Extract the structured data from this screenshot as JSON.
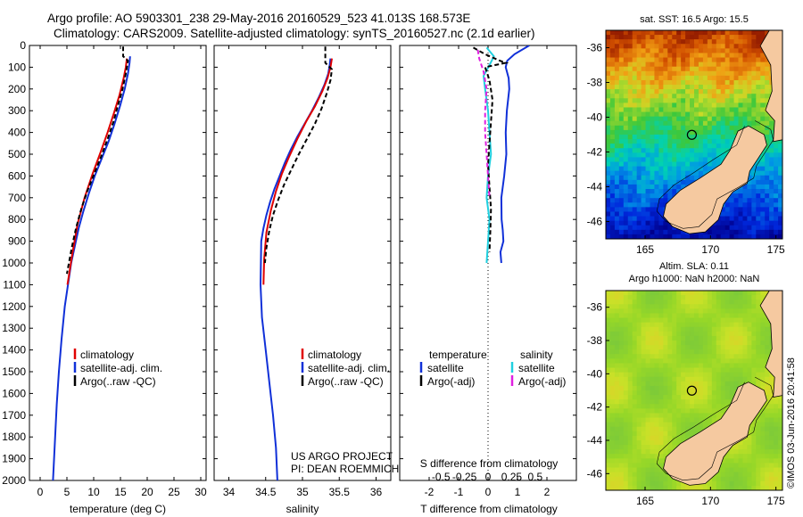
{
  "header": {
    "title_line1": "Argo profile: AO 5903301_238 29-May-2016 20160529_523 41.013S 168.573E",
    "title_line2": "Climatology: CARS2009. Satellite-adjusted climatology: synTS_20160527.nc (2.1d earlier)"
  },
  "colors": {
    "climatology": "#e00000",
    "satellite": "#1030d8",
    "argo": "#000000",
    "salinity_sat": "#20d0e0",
    "salinity_argo": "#e020e0",
    "land": "#f5c9a0"
  },
  "chart_data": [
    {
      "id": "temperature",
      "type": "line",
      "xlabel": "temperature (deg C)",
      "xlim": [
        -2,
        31
      ],
      "ylim": [
        2000,
        0
      ],
      "xticks": [
        "0",
        "5",
        "10",
        "15",
        "20",
        "25",
        "30"
      ],
      "xtick_values": [
        0,
        5,
        10,
        15,
        20,
        25,
        30
      ],
      "yticks": [
        "0",
        "100",
        "200",
        "300",
        "400",
        "500",
        "600",
        "700",
        "800",
        "900",
        "1000",
        "1100",
        "1200",
        "1300",
        "1400",
        "1500",
        "1600",
        "1700",
        "1800",
        "1900",
        "2000"
      ],
      "ytick_values": [
        0,
        100,
        200,
        300,
        400,
        500,
        600,
        700,
        800,
        900,
        1000,
        1100,
        1200,
        1300,
        1400,
        1500,
        1600,
        1700,
        1800,
        1900,
        2000
      ],
      "legend": [
        "climatology",
        "satellite-adj. clim.",
        "Argo(..raw -QC)"
      ],
      "series": [
        {
          "name": "satellite-adj. clim.",
          "color_key": "satellite",
          "x": [
            16.8,
            16.7,
            16.4,
            15.8,
            14.9,
            13.9,
            12.8,
            11.5,
            10.2,
            9.1,
            8.1,
            7.2,
            6.5,
            5.8,
            5.2,
            4.6,
            4.0,
            3.5,
            3.1,
            2.8,
            2.6,
            2.4
          ],
          "y": [
            50,
            80,
            130,
            200,
            280,
            360,
            440,
            520,
            600,
            680,
            760,
            840,
            920,
            1000,
            1100,
            1200,
            1350,
            1500,
            1650,
            1800,
            1900,
            2000
          ]
        },
        {
          "name": "climatology",
          "color_key": "climatology",
          "x": [
            16.2,
            16.0,
            15.6,
            14.8,
            13.8,
            12.6,
            11.3,
            9.8,
            8.3,
            7.0,
            6.0,
            5.1
          ],
          "y": [
            60,
            100,
            150,
            230,
            310,
            400,
            490,
            590,
            700,
            820,
            960,
            1100
          ]
        },
        {
          "name": "Argo(..raw -QC)",
          "color_key": "argo",
          "x": [
            15.5,
            15.5,
            16.4,
            16.0,
            15.4,
            14.6,
            13.7,
            12.6,
            11.4,
            10.1,
            8.8,
            7.7,
            6.7,
            5.9,
            5.3,
            5.0
          ],
          "y": [
            5,
            50,
            70,
            130,
            200,
            270,
            350,
            430,
            510,
            590,
            670,
            750,
            840,
            930,
            1010,
            1050
          ]
        }
      ]
    },
    {
      "id": "salinity",
      "type": "line",
      "xlabel": "salinity",
      "xlim": [
        33.8,
        36.2
      ],
      "ylim": [
        2000,
        0
      ],
      "xticks": [
        "34",
        "34.5",
        "35",
        "35.5",
        "36"
      ],
      "xtick_values": [
        34,
        34.5,
        35,
        35.5,
        36
      ],
      "legend": [
        "climatology",
        "satellite-adj. clim.",
        "Argo(..raw -QC)"
      ],
      "series": [
        {
          "name": "satellite-adj. clim.",
          "color_key": "satellite",
          "x": [
            35.38,
            35.37,
            35.35,
            35.3,
            35.22,
            35.13,
            35.03,
            34.93,
            34.84,
            34.76,
            34.69,
            34.62,
            34.56,
            34.51,
            34.47,
            34.44,
            34.43,
            34.45,
            34.5,
            34.55,
            34.6,
            34.64,
            34.66
          ],
          "y": [
            60,
            90,
            130,
            180,
            240,
            300,
            360,
            420,
            480,
            540,
            600,
            660,
            720,
            780,
            840,
            900,
            1100,
            1250,
            1400,
            1550,
            1700,
            1850,
            2000
          ]
        },
        {
          "name": "climatology",
          "color_key": "climatology",
          "x": [
            35.4,
            35.38,
            35.34,
            35.27,
            35.17,
            35.05,
            34.93,
            34.82,
            34.72,
            34.64,
            34.57,
            34.51,
            34.48,
            34.47
          ],
          "y": [
            60,
            100,
            150,
            210,
            280,
            350,
            430,
            510,
            590,
            670,
            760,
            860,
            980,
            1100
          ]
        },
        {
          "name": "Argo(..raw -QC)",
          "color_key": "argo",
          "x": [
            35.31,
            35.31,
            35.4,
            35.38,
            35.33,
            35.26,
            35.17,
            35.06,
            34.95,
            34.85,
            34.75,
            34.67,
            34.6,
            34.55,
            34.51,
            34.49
          ],
          "y": [
            5,
            80,
            110,
            160,
            220,
            290,
            360,
            430,
            500,
            570,
            640,
            710,
            780,
            850,
            930,
            1000
          ]
        }
      ]
    },
    {
      "id": "difference",
      "type": "line",
      "xlabel": "T difference from climatology",
      "xlabel2": "S difference from climatology",
      "xlim": [
        -3,
        3
      ],
      "ylim": [
        2000,
        0
      ],
      "xticks": [
        "-2",
        "-1",
        "0",
        "1",
        "2"
      ],
      "xtick_values": [
        -2,
        -1,
        0,
        1,
        2
      ],
      "sticks": [
        "-0.5",
        "-0.25",
        "0",
        "0.25",
        "0.5"
      ],
      "stick_values": [
        -1.6,
        -0.8,
        0,
        0.8,
        1.6
      ],
      "legend_temperature_title": "temperature",
      "legend_salinity_title": "salinity",
      "legend_temperature": [
        "satellite",
        "Argo(-adj)"
      ],
      "legend_salinity": [
        "satellite",
        "Argo(-adj)"
      ],
      "series": [
        {
          "name": "temperature satellite",
          "color_key": "satellite",
          "x": [
            1.4,
            0.9,
            0.65,
            0.6,
            0.7,
            0.72,
            0.64,
            0.6,
            0.62,
            0.55,
            0.5,
            0.45,
            0.46,
            0.5,
            0.52,
            0.42,
            0.45
          ],
          "y": [
            0,
            40,
            70,
            100,
            150,
            200,
            300,
            400,
            500,
            600,
            650,
            700,
            800,
            850,
            900,
            950,
            1000
          ]
        },
        {
          "name": "salinity satellite",
          "color_key": "salinity_sat",
          "x": [
            -0.05,
            0.2,
            0.05,
            -0.15,
            -0.1,
            0.0,
            0.05,
            0.1,
            0.0,
            -0.05,
            0.05,
            0.0,
            -0.05
          ],
          "y": [
            10,
            50,
            90,
            140,
            200,
            300,
            400,
            500,
            600,
            700,
            800,
            900,
            1000
          ]
        },
        {
          "name": "temperature Argo(-adj)",
          "color_key": "argo",
          "x": [
            -0.5,
            -0.1,
            0.4,
            0.6,
            -0.1,
            -0.05,
            0.05,
            0.15,
            0.1,
            0.05,
            0.0,
            0.05,
            0.1,
            0.08,
            0.05
          ],
          "y": [
            10,
            40,
            70,
            80,
            100,
            120,
            160,
            250,
            350,
            450,
            550,
            650,
            750,
            850,
            950
          ]
        },
        {
          "name": "salinity Argo(-adj)",
          "color_key": "salinity_argo",
          "x": [
            -0.35,
            -0.3,
            -0.15,
            -0.05,
            -0.1,
            -0.1,
            -0.05,
            0.0,
            0.05
          ],
          "y": [
            20,
            60,
            120,
            200,
            300,
            400,
            500,
            600,
            700
          ]
        }
      ]
    },
    {
      "id": "sst_map",
      "type": "heatmap",
      "title": "sat. SST: 16.5 Argo: 15.5",
      "xticks": [
        "165",
        "170",
        "175"
      ],
      "yticks": [
        "-36",
        "-38",
        "-40",
        "-42",
        "-44",
        "-46"
      ],
      "lon_range": [
        162,
        175.5
      ],
      "lat_range": [
        -47,
        -35
      ],
      "argo_point": {
        "lon": 168.573,
        "lat": -41.013
      }
    },
    {
      "id": "sla_map",
      "type": "heatmap",
      "title_line1": "Altim. SLA: 0.11",
      "title_line2": "Argo h1000: NaN h2000: NaN",
      "xticks": [
        "165",
        "170",
        "175"
      ],
      "yticks": [
        "-36",
        "-38",
        "-40",
        "-42",
        "-44",
        "-46"
      ],
      "lon_range": [
        162,
        175.5
      ],
      "lat_range": [
        -47,
        -35
      ],
      "argo_point": {
        "lon": 168.573,
        "lat": -41.013
      }
    }
  ],
  "annotations": {
    "project_line1": "US ARGO PROJECT",
    "project_line2": "PI: DEAN ROEMMICH",
    "imos_stamp": "©IMOS 03-Jun-2016 20:41:58"
  }
}
